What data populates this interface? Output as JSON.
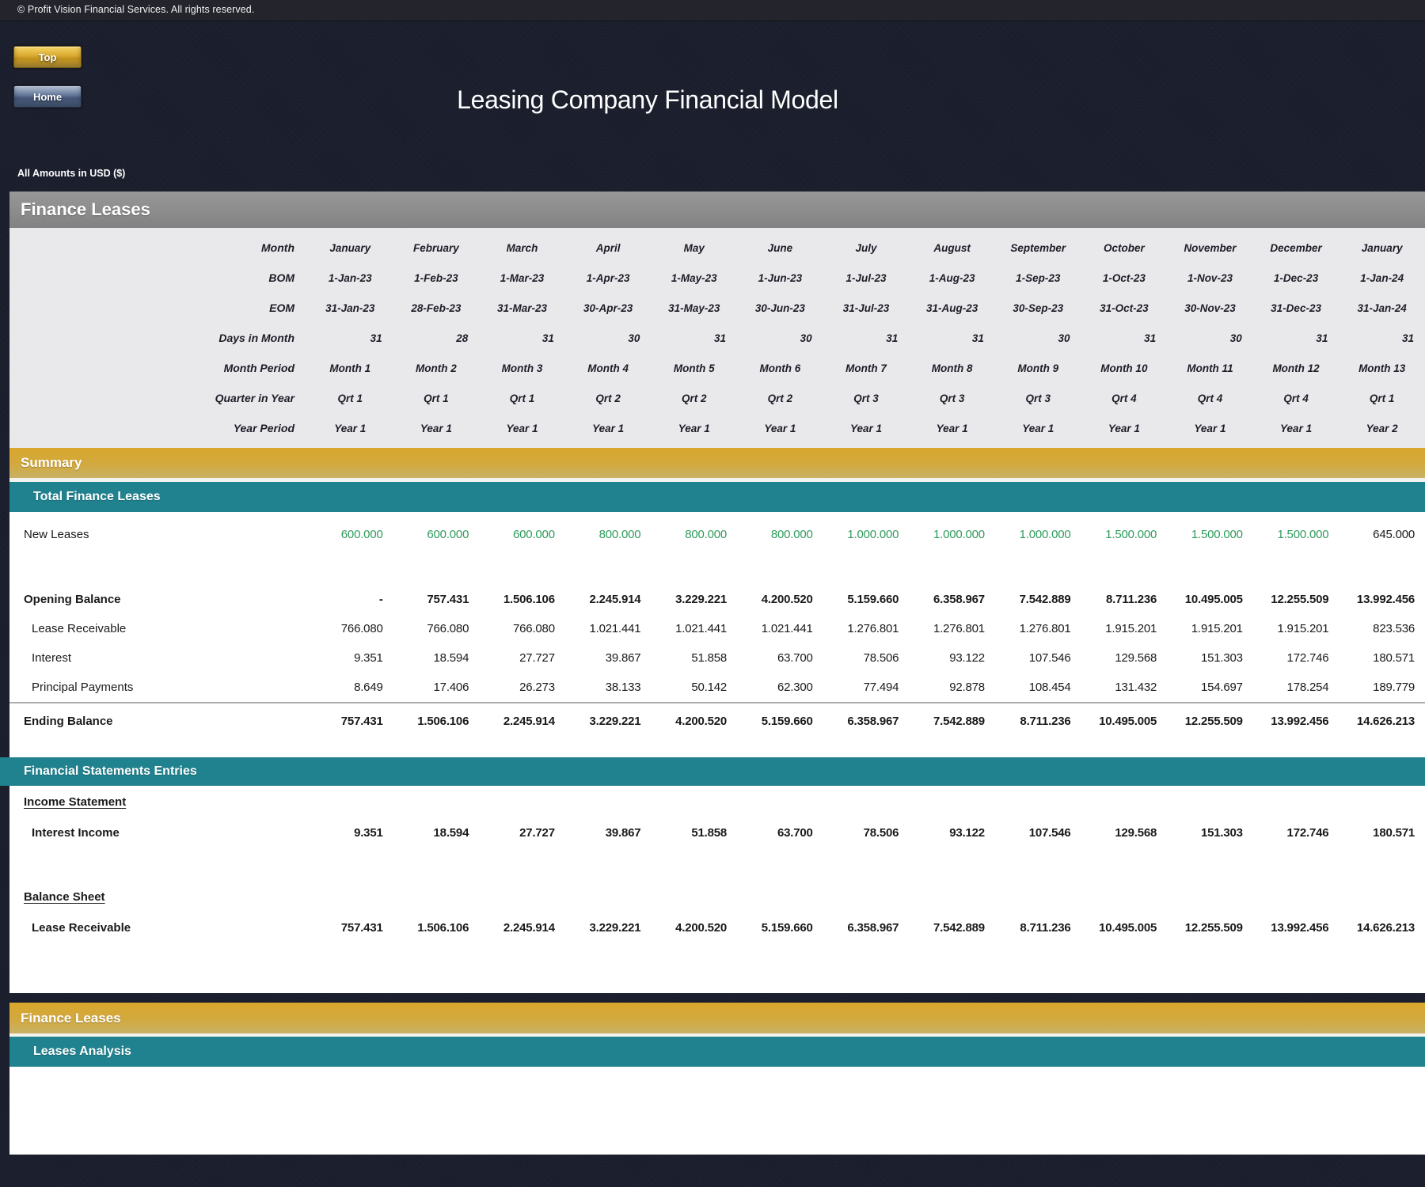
{
  "header": {
    "copyright": "© Profit Vision Financial Services. All rights reserved.",
    "title": "Leasing Company Financial Model",
    "top_button": "Top",
    "home_button": "Home",
    "amounts_note": "All Amounts in  USD ($)"
  },
  "bars": {
    "finance_leases_top": "Finance Leases",
    "summary": "Summary",
    "total_finance_leases": "Total Finance Leases",
    "financial_statements": "Financial Statements Entries",
    "finance_leases_bottom": "Finance Leases",
    "leases_analysis": "Leases Analysis"
  },
  "headings": {
    "income_statement": "Income Statement",
    "balance_sheet": "Balance Sheet"
  },
  "colors": {
    "navy_background": "#1b1f2e",
    "gray_bar": "#8d8d8d",
    "gold_bar_top": "#d9a72c",
    "gold_bar_bottom": "#c9b166",
    "teal_bar": "#20828f",
    "calendar_background": "#e9e9ec",
    "green_value": "#2f9b5c",
    "top_button_gold": "#d8a82e",
    "home_button_blue": "#54698c"
  },
  "calendar": {
    "rows": [
      {
        "label": "Month",
        "values": [
          "January",
          "February",
          "March",
          "April",
          "May",
          "June",
          "July",
          "August",
          "September",
          "October",
          "November",
          "December",
          "January"
        ]
      },
      {
        "label": "BOM",
        "values": [
          "1-Jan-23",
          "1-Feb-23",
          "1-Mar-23",
          "1-Apr-23",
          "1-May-23",
          "1-Jun-23",
          "1-Jul-23",
          "1-Aug-23",
          "1-Sep-23",
          "1-Oct-23",
          "1-Nov-23",
          "1-Dec-23",
          "1-Jan-24"
        ]
      },
      {
        "label": "EOM",
        "values": [
          "31-Jan-23",
          "28-Feb-23",
          "31-Mar-23",
          "30-Apr-23",
          "31-May-23",
          "30-Jun-23",
          "31-Jul-23",
          "31-Aug-23",
          "30-Sep-23",
          "31-Oct-23",
          "30-Nov-23",
          "31-Dec-23",
          "31-Jan-24"
        ]
      },
      {
        "label": "Days in Month",
        "values": [
          "31",
          "28",
          "31",
          "30",
          "31",
          "30",
          "31",
          "31",
          "30",
          "31",
          "30",
          "31",
          "31"
        ]
      },
      {
        "label": "Month Period",
        "values": [
          "Month 1",
          "Month 2",
          "Month 3",
          "Month 4",
          "Month 5",
          "Month 6",
          "Month 7",
          "Month 8",
          "Month 9",
          "Month 10",
          "Month 11",
          "Month 12",
          "Month 13"
        ]
      },
      {
        "label": "Quarter in Year",
        "values": [
          "Qrt 1",
          "Qrt 1",
          "Qrt 1",
          "Qrt 2",
          "Qrt 2",
          "Qrt 2",
          "Qrt 3",
          "Qrt 3",
          "Qrt 3",
          "Qrt 4",
          "Qrt 4",
          "Qrt 4",
          "Qrt 1"
        ]
      },
      {
        "label": "Year Period",
        "values": [
          "Year 1",
          "Year 1",
          "Year 1",
          "Year 1",
          "Year 1",
          "Year 1",
          "Year 1",
          "Year 1",
          "Year 1",
          "Year 1",
          "Year 1",
          "Year 1",
          "Year 2"
        ]
      }
    ]
  },
  "finance_table": {
    "new_leases": {
      "label": "New Leases",
      "values": [
        "600.000",
        "600.000",
        "600.000",
        "800.000",
        "800.000",
        "800.000",
        "1.000.000",
        "1.000.000",
        "1.000.000",
        "1.500.000",
        "1.500.000",
        "1.500.000",
        "645.000"
      ],
      "value_styles": [
        "g",
        "g",
        "g",
        "g",
        "g",
        "g",
        "g",
        "g",
        "g",
        "g",
        "g",
        "g",
        "d"
      ]
    },
    "opening_balance": {
      "label": "Opening Balance",
      "values": [
        "-",
        "757.431",
        "1.506.106",
        "2.245.914",
        "3.229.221",
        "4.200.520",
        "5.159.660",
        "6.358.967",
        "7.542.889",
        "8.711.236",
        "10.495.005",
        "12.255.509",
        "13.992.456"
      ]
    },
    "lease_receivable": {
      "label": "Lease Receivable",
      "values": [
        "766.080",
        "766.080",
        "766.080",
        "1.021.441",
        "1.021.441",
        "1.021.441",
        "1.276.801",
        "1.276.801",
        "1.276.801",
        "1.915.201",
        "1.915.201",
        "1.915.201",
        "823.536"
      ]
    },
    "interest": {
      "label": "Interest",
      "values": [
        "9.351",
        "18.594",
        "27.727",
        "39.867",
        "51.858",
        "63.700",
        "78.506",
        "93.122",
        "107.546",
        "129.568",
        "151.303",
        "172.746",
        "180.571"
      ]
    },
    "principal_payments": {
      "label": "Principal Payments",
      "values": [
        "8.649",
        "17.406",
        "26.273",
        "38.133",
        "50.142",
        "62.300",
        "77.494",
        "92.878",
        "108.454",
        "131.432",
        "154.697",
        "178.254",
        "189.779"
      ]
    },
    "ending_balance": {
      "label": "Ending Balance",
      "values": [
        "757.431",
        "1.506.106",
        "2.245.914",
        "3.229.221",
        "4.200.520",
        "5.159.660",
        "6.358.967",
        "7.542.889",
        "8.711.236",
        "10.495.005",
        "12.255.509",
        "13.992.456",
        "14.626.213"
      ]
    },
    "interest_income": {
      "label": "Interest Income",
      "values": [
        "9.351",
        "18.594",
        "27.727",
        "39.867",
        "51.858",
        "63.700",
        "78.506",
        "93.122",
        "107.546",
        "129.568",
        "151.303",
        "172.746",
        "180.571"
      ]
    },
    "bs_lease_receivable": {
      "label": "Lease Receivable",
      "values": [
        "757.431",
        "1.506.106",
        "2.245.914",
        "3.229.221",
        "4.200.520",
        "5.159.660",
        "6.358.967",
        "7.542.889",
        "8.711.236",
        "10.495.005",
        "12.255.509",
        "13.992.456",
        "14.626.213"
      ]
    }
  }
}
